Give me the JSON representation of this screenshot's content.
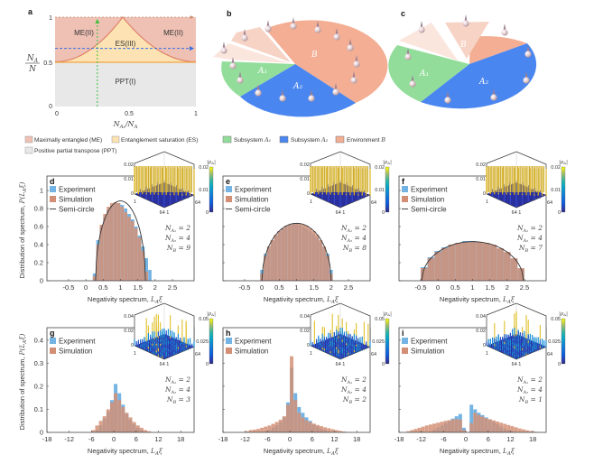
{
  "panel_labels": {
    "a": "a",
    "b": "b",
    "c": "c",
    "d": "d",
    "e": "e",
    "f": "f",
    "g": "g",
    "h": "h",
    "i": "i"
  },
  "phase_diagram": {
    "type": "area",
    "regions": {
      "me_left": "ME(II)",
      "me_right": "ME(II)",
      "es": "ES(III)",
      "ppt": "PPT(I)"
    },
    "y_ticks": [
      "0",
      "0.5",
      "1"
    ],
    "x_ticks": [
      "0",
      "0.5",
      "1"
    ],
    "ylabel_num": "N",
    "ylabel_num_sub": "A",
    "ylabel_den": "N",
    "xlabel_a": "N",
    "xlabel_sub": "A₁",
    "xlabel_b": "/N",
    "xlabel_b_sub": "A",
    "boundary_peak_x": 0.48,
    "vertical_cut_x": 0.3,
    "horizontal_cut_y": 0.65,
    "colors": {
      "me": "#efc1b5",
      "es": "#fde3b3",
      "ppt": "#e8e8e8",
      "boundary": "#e0826a",
      "green": "#3cbf3c",
      "blue": "#3a6fe0",
      "brown": "#c98a6a"
    }
  },
  "legend_top": {
    "me": "Maximally entangled (ME)",
    "es": "Entanglement saturation (ES)",
    "ppt": "Positive partial transpose (PPT)",
    "a1_text": "Subsystem ",
    "a1_sym": "A₁",
    "a2_text": "Subsystem ",
    "a2_sym": "A₂",
    "b_text": "Environment ",
    "b_sym": "B",
    "colors": {
      "a1": "#93dd9b",
      "a2": "#4a86ef",
      "b": "#f3ae94"
    }
  },
  "pie_labels": {
    "b": {
      "B": "B",
      "A1": "A₁",
      "A2": "A₂"
    },
    "c": {
      "B": "B",
      "A1": "A₁",
      "A2": "A₂"
    }
  },
  "common": {
    "legend_exp": "Experiment",
    "legend_sim": "Simulation",
    "legend_semi": "Semi-circle",
    "xlabel": "Negativity spectrum, ",
    "xlabel_sym": "L",
    "xlabel_sub": "A",
    "xlabel_tail": "ξ",
    "ylabel": "Distribution of spectrum, ",
    "ylabel_sym": "P(L",
    "ylabel_sub": "A",
    "ylabel_tail": "ξ)",
    "colorbar_title": "|ρ",
    "colorbar_title_sub": "A",
    "colorbar_title_tail": "|",
    "inset_axis_1": "1",
    "inset_axis_64": "64",
    "inset_axis_64_1": "64 1",
    "colors": {
      "experiment": "#74b4e4",
      "simulation": "#d38f76",
      "semicircle": "#333333"
    }
  },
  "chart_data": [
    {
      "id": "d",
      "type": "bar",
      "title": "d",
      "xlim": [
        -1.125,
        3.125
      ],
      "ylim": [
        0,
        1.16
      ],
      "x_ticks": [
        -0.5,
        0,
        0.5,
        1,
        1.5,
        2,
        2.5
      ],
      "x_tick_labels": [
        "-0.5",
        "0",
        "0.5",
        "1",
        "1.5",
        "2",
        "2.5"
      ],
      "y_ticks": [
        0,
        0.2,
        0.4,
        0.6,
        0.8,
        1
      ],
      "y_tick_labels": [
        "0",
        "0.2",
        "0.4",
        "0.6",
        "0.8",
        "1"
      ],
      "bin_start": 0.2,
      "bin_width": 0.1,
      "experiment": [
        0.08,
        0.45,
        0.6,
        0.7,
        0.78,
        0.83,
        0.86,
        0.86,
        0.84,
        0.8,
        0.74,
        0.68,
        0.6,
        0.5,
        0.38,
        0.25,
        0.12
      ],
      "simulation": [
        0.05,
        0.4,
        0.62,
        0.74,
        0.82,
        0.86,
        0.87,
        0.86,
        0.82,
        0.76,
        0.71,
        0.66,
        0.58,
        0.48,
        0.33,
        0.1,
        0
      ],
      "semicircle": {
        "center": 1,
        "radius": 0.72
      },
      "params": [
        {
          "sym": "N",
          "sub": "A₁",
          "val": " = 2"
        },
        {
          "sym": "N",
          "sub": "A₂",
          "val": " = 4"
        },
        {
          "sym": "N",
          "sub": "B",
          "val": " = 9"
        }
      ],
      "inset_ticks": [
        "0.02",
        "0.01",
        "0"
      ],
      "colorbar_ticks": [
        "0.02",
        "0.01",
        "0"
      ],
      "inset_style": "flat"
    },
    {
      "id": "e",
      "type": "bar",
      "title": "e",
      "xlim": [
        -1.125,
        3.125
      ],
      "ylim": [
        0,
        1.16
      ],
      "x_ticks": [
        -0.5,
        0,
        0.5,
        1,
        1.5,
        2,
        2.5
      ],
      "x_tick_labels": [
        "-0.5",
        "0",
        "0.5",
        "1",
        "1.5",
        "2",
        "2.5"
      ],
      "y_ticks": [
        0,
        0.2,
        0.4,
        0.6,
        0.8,
        1
      ],
      "y_tick_labels": [],
      "bin_start": -0.05,
      "bin_width": 0.1,
      "experiment": [
        0.12,
        0.3,
        0.38,
        0.44,
        0.5,
        0.55,
        0.58,
        0.6,
        0.62,
        0.63,
        0.63,
        0.62,
        0.6,
        0.58,
        0.55,
        0.52,
        0.48,
        0.43,
        0.37,
        0.3,
        0.12
      ],
      "simulation": [
        0.08,
        0.28,
        0.38,
        0.45,
        0.51,
        0.55,
        0.58,
        0.61,
        0.62,
        0.63,
        0.64,
        0.63,
        0.62,
        0.61,
        0.58,
        0.55,
        0.51,
        0.45,
        0.38,
        0.28,
        0.08
      ],
      "semicircle": {
        "center": 1,
        "radius": 1.0
      },
      "params": [
        {
          "sym": "N",
          "sub": "A₁",
          "val": " = 2"
        },
        {
          "sym": "N",
          "sub": "A₂",
          "val": " = 4"
        },
        {
          "sym": "N",
          "sub": "B",
          "val": " = 8"
        }
      ],
      "inset_ticks": [
        "0.02",
        "0.01",
        "0"
      ],
      "colorbar_ticks": [
        "0.02",
        "0.01",
        "0"
      ],
      "inset_style": "flat"
    },
    {
      "id": "f",
      "type": "bar",
      "title": "f",
      "xlim": [
        -1.125,
        3.125
      ],
      "ylim": [
        0,
        1.16
      ],
      "x_ticks": [
        -0.5,
        0,
        0.5,
        1,
        1.5,
        2,
        2.5
      ],
      "x_tick_labels": [
        "-0.5",
        "0",
        "0.5",
        "1",
        "1.5",
        "2",
        "2.5"
      ],
      "y_ticks": [
        0,
        0.2,
        0.4,
        0.6,
        0.8,
        1
      ],
      "y_tick_labels": [],
      "bin_start": -0.5,
      "bin_width": 0.2,
      "experiment": [
        0.15,
        0.26,
        0.33,
        0.37,
        0.4,
        0.42,
        0.44,
        0.44,
        0.43,
        0.41,
        0.39,
        0.35,
        0.31,
        0.24,
        0.13
      ],
      "simulation": [
        0.14,
        0.25,
        0.32,
        0.36,
        0.4,
        0.42,
        0.43,
        0.43,
        0.43,
        0.42,
        0.4,
        0.36,
        0.32,
        0.25,
        0.14
      ],
      "semicircle": {
        "center": 1,
        "radius": 1.47
      },
      "params": [
        {
          "sym": "N",
          "sub": "A₁",
          "val": " = 2"
        },
        {
          "sym": "N",
          "sub": "A₂",
          "val": " = 4"
        },
        {
          "sym": "N",
          "sub": "B",
          "val": " = 7"
        }
      ],
      "inset_ticks": [
        "0.02",
        "0.01",
        "0"
      ],
      "colorbar_ticks": [
        "0.02",
        "0.01",
        "0"
      ],
      "inset_style": "flat"
    },
    {
      "id": "g",
      "type": "bar",
      "title": "g",
      "xlim": [
        -18,
        21.6
      ],
      "ylim": [
        0,
        0.454
      ],
      "x_ticks": [
        -18,
        -12,
        -6,
        0,
        6,
        12,
        18
      ],
      "x_tick_labels": [
        "-18",
        "-12",
        "-6",
        "0",
        "6",
        "12",
        "18"
      ],
      "y_ticks": [
        0,
        0.1,
        0.2,
        0.3,
        0.4
      ],
      "y_tick_labels": [
        "0",
        "0.1",
        "0.2",
        "0.3",
        "0.4"
      ],
      "bin_start": -6,
      "bin_width": 1,
      "experiment": [
        0,
        0.01,
        0.03,
        0.06,
        0.09,
        0.14,
        0.21,
        0.17,
        0.12,
        0.08,
        0.055,
        0.035,
        0.02,
        0.01,
        0,
        0
      ],
      "simulation": [
        0.01,
        0.03,
        0.05,
        0.07,
        0.1,
        0.13,
        0.17,
        0.14,
        0.11,
        0.085,
        0.065,
        0.045,
        0.03,
        0.02,
        0.01,
        0.005
      ],
      "params": [
        {
          "sym": "N",
          "sub": "A₁",
          "val": " = 2"
        },
        {
          "sym": "N",
          "sub": "A₂",
          "val": " = 4"
        },
        {
          "sym": "N",
          "sub": "B",
          "val": " = 3"
        }
      ],
      "inset_ticks": [
        "0.04",
        "0.02",
        "0"
      ],
      "colorbar_ticks": [
        "0.05",
        "0.025",
        "0"
      ],
      "inset_style": "rough"
    },
    {
      "id": "h",
      "type": "bar",
      "title": "h",
      "xlim": [
        -18,
        21.6
      ],
      "ylim": [
        0,
        0.454
      ],
      "x_ticks": [
        -18,
        -12,
        -6,
        0,
        6,
        12,
        18
      ],
      "x_tick_labels": [
        "-18",
        "-12",
        "-6",
        "0",
        "6",
        "12",
        "18"
      ],
      "y_ticks": [
        0,
        0.1,
        0.2,
        0.3,
        0.4
      ],
      "y_tick_labels": [],
      "bin_start": -12,
      "bin_width": 1,
      "experiment": [
        0,
        0,
        0,
        0,
        0,
        0.005,
        0.01,
        0.02,
        0.03,
        0.045,
        0.065,
        0.13,
        0.28,
        0.17,
        0.11,
        0.085,
        0.065,
        0.05,
        0.035,
        0.025,
        0.015,
        0.01,
        0.005,
        0,
        0,
        0,
        0,
        0
      ],
      "simulation": [
        0.005,
        0.01,
        0.012,
        0.015,
        0.02,
        0.025,
        0.03,
        0.037,
        0.045,
        0.055,
        0.07,
        0.12,
        0.33,
        0.14,
        0.085,
        0.065,
        0.052,
        0.045,
        0.038,
        0.032,
        0.027,
        0.022,
        0.018,
        0.014,
        0.01,
        0.007,
        0.004,
        0.002
      ],
      "params": [
        {
          "sym": "N",
          "sub": "A₁",
          "val": " = 2"
        },
        {
          "sym": "N",
          "sub": "A₂",
          "val": " = 4"
        },
        {
          "sym": "N",
          "sub": "B",
          "val": " = 2"
        }
      ],
      "inset_ticks": [
        "0.04",
        "0.02",
        "0"
      ],
      "colorbar_ticks": [
        "0.05",
        "0.025",
        "0"
      ],
      "inset_style": "rough"
    },
    {
      "id": "i",
      "type": "bar",
      "title": "i",
      "xlim": [
        -18,
        21.6
      ],
      "ylim": [
        0,
        0.454
      ],
      "x_ticks": [
        -18,
        -12,
        -6,
        0,
        6,
        12,
        18
      ],
      "x_tick_labels": [
        "-18",
        "-12",
        "-6",
        "0",
        "6",
        "12",
        "18"
      ],
      "y_ticks": [
        0,
        0.1,
        0.2,
        0.3,
        0.4
      ],
      "y_tick_labels": [],
      "bin_start": -16,
      "bin_width": 1,
      "experiment": [
        0,
        0,
        0,
        0,
        0,
        0,
        0,
        0.01,
        0.02,
        0.03,
        0.04,
        0.05,
        0.06,
        0.07,
        0.08,
        0.02,
        0,
        0.12,
        0.1,
        0.085,
        0.075,
        0.065,
        0.055,
        0.045,
        0.035,
        0.025,
        0.015,
        0.01,
        0.005,
        0,
        0,
        0,
        0,
        0,
        0,
        0
      ],
      "simulation": [
        0.005,
        0.01,
        0.015,
        0.02,
        0.025,
        0.03,
        0.034,
        0.038,
        0.042,
        0.046,
        0.05,
        0.053,
        0.056,
        0.058,
        0.055,
        0.01,
        0,
        0.04,
        0.085,
        0.075,
        0.068,
        0.062,
        0.057,
        0.052,
        0.047,
        0.042,
        0.037,
        0.032,
        0.027,
        0.022,
        0.017,
        0.013,
        0.009,
        0.006,
        0.003,
        0.001
      ],
      "params": [
        {
          "sym": "N",
          "sub": "A₁",
          "val": " = 2"
        },
        {
          "sym": "N",
          "sub": "A₂",
          "val": " = 4"
        },
        {
          "sym": "N",
          "sub": "B",
          "val": " = 1"
        }
      ],
      "inset_ticks": [
        "0.04",
        "0.02",
        "0"
      ],
      "colorbar_ticks": [
        "0.05",
        "0.025",
        "0"
      ],
      "inset_style": "rough"
    }
  ]
}
